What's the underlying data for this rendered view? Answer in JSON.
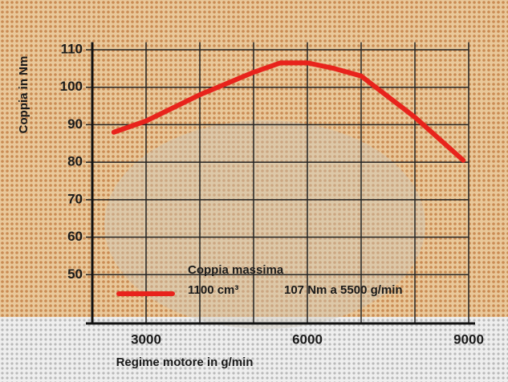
{
  "chart_data": {
    "type": "line",
    "y_label": "Coppia in Nm",
    "x_label": "Regime motore in g/min",
    "x": [
      2400,
      3000,
      4000,
      5000,
      5500,
      6000,
      6500,
      7000,
      8000,
      8900
    ],
    "series": [
      {
        "name": "1100 cm³",
        "color": "#e8231c",
        "values": [
          88,
          91,
          98,
          104,
          106.5,
          106.5,
          105,
          103,
          92,
          80.5
        ]
      }
    ],
    "legend_title": "Coppia massima",
    "annotation": "107 Nm a 5500 g/min",
    "xlim": [
      2000,
      9000
    ],
    "xticks": [
      3000,
      6000,
      9000
    ],
    "xgrid": [
      2000,
      3000,
      4000,
      5000,
      6000,
      7000,
      8000,
      9000
    ],
    "ylim": [
      37,
      112
    ],
    "yticks": [
      50,
      60,
      70,
      80,
      90,
      100,
      110
    ],
    "grid": true
  }
}
